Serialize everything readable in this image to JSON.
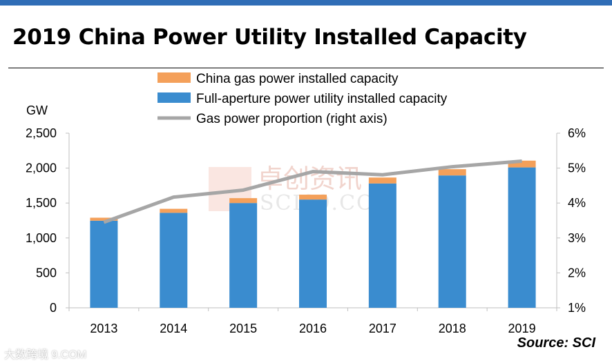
{
  "title": "2019 China Power Utility Installed Capacity",
  "source": "Source: SCI",
  "watermarks": {
    "center_cn": "卓创资讯",
    "center_en": "SCI99.COM",
    "corner": "大数跨境  9.COM"
  },
  "colors": {
    "gas": "#f4a05a",
    "utility": "#3a8ccf",
    "line": "#a6a6a6",
    "title_bar": "#2f6db6"
  },
  "chart_data": {
    "type": "bar",
    "categories": [
      "2013",
      "2014",
      "2015",
      "2016",
      "2017",
      "2018",
      "2019"
    ],
    "series": [
      {
        "name": "Full-aperture power utility installed capacity",
        "type": "bar",
        "stack": "total",
        "axis": "left",
        "values": [
          1247,
          1360,
          1500,
          1550,
          1780,
          1895,
          2010
        ]
      },
      {
        "name": "China gas power installed capacity",
        "type": "bar",
        "stack": "total",
        "axis": "left",
        "values": [
          43,
          57,
          70,
          70,
          85,
          90,
          97
        ]
      },
      {
        "name": "Gas power proportion (right axis)",
        "type": "line",
        "axis": "right",
        "values": [
          3.45,
          4.17,
          4.37,
          4.9,
          4.81,
          5.04,
          5.2
        ]
      }
    ],
    "ylabel": "GW",
    "ylim": [
      0,
      2500
    ],
    "y_ticks": [
      "0",
      "500",
      "1,000",
      "1,500",
      "2,000",
      "2,500"
    ],
    "y2lim": [
      1,
      6
    ],
    "y2_ticks": [
      "1%",
      "2%",
      "3%",
      "4%",
      "5%",
      "6%"
    ],
    "legend_position": "top",
    "grid": false
  }
}
